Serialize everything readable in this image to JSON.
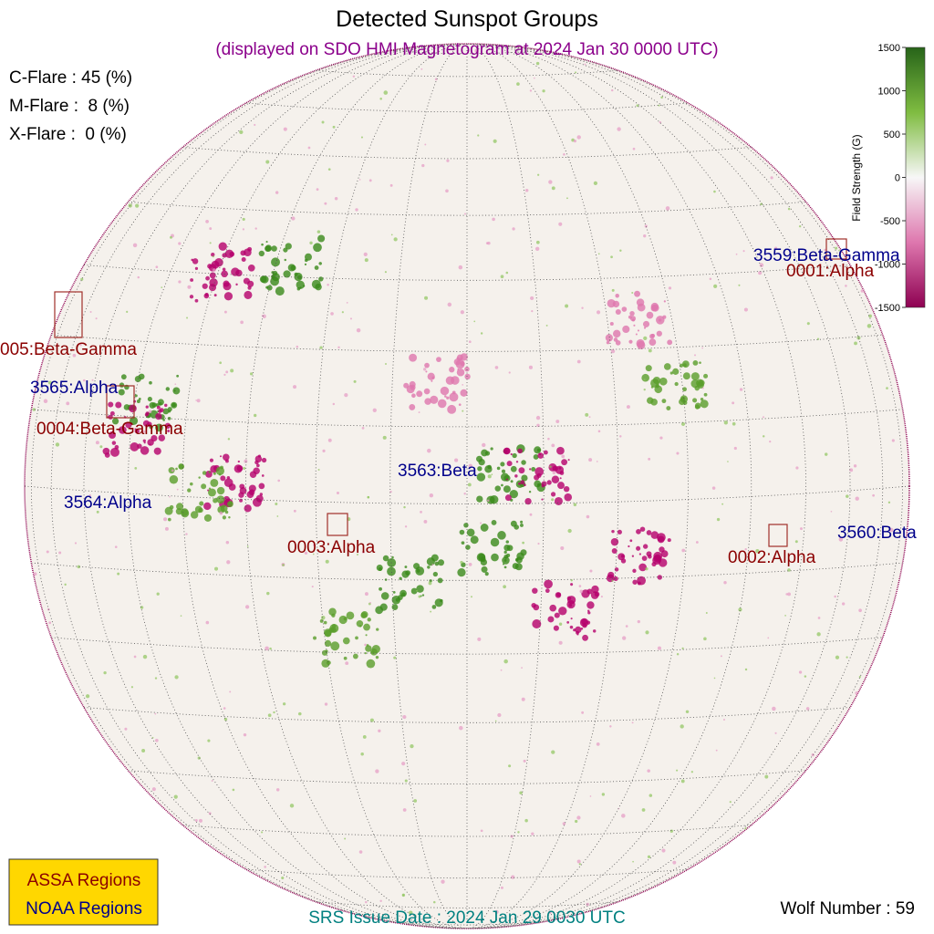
{
  "title": "Detected Sunspot Groups",
  "subtitle": "(displayed on SDO HMI Magnetogram at 2024 Jan 30 0000 UTC)",
  "flare_probabilities": [
    "C-Flare : 45 (%)",
    "M-Flare :  8 (%)",
    "X-Flare :  0 (%)"
  ],
  "colorbar": {
    "label": "Field Strength (G)",
    "ticks": [
      1500,
      1000,
      500,
      0,
      -500,
      -1000,
      -1500
    ]
  },
  "assa_regions": [
    "0001:Alpha",
    "0002:Alpha",
    "0003:Alpha",
    "0004:Beta-Gamma",
    "005:Beta-Gamma"
  ],
  "noaa_regions": [
    "3559:Beta-Gamma",
    "3560:Beta",
    "3563:Beta",
    "3564:Alpha",
    "3565:Alpha"
  ],
  "legend": [
    "ASSA Regions",
    "NOAA Regions"
  ],
  "footer": {
    "issue_date": "SRS Issue Date : 2024 Jan 29 0030 UTC",
    "wolf_number": "Wolf Number : 59"
  }
}
